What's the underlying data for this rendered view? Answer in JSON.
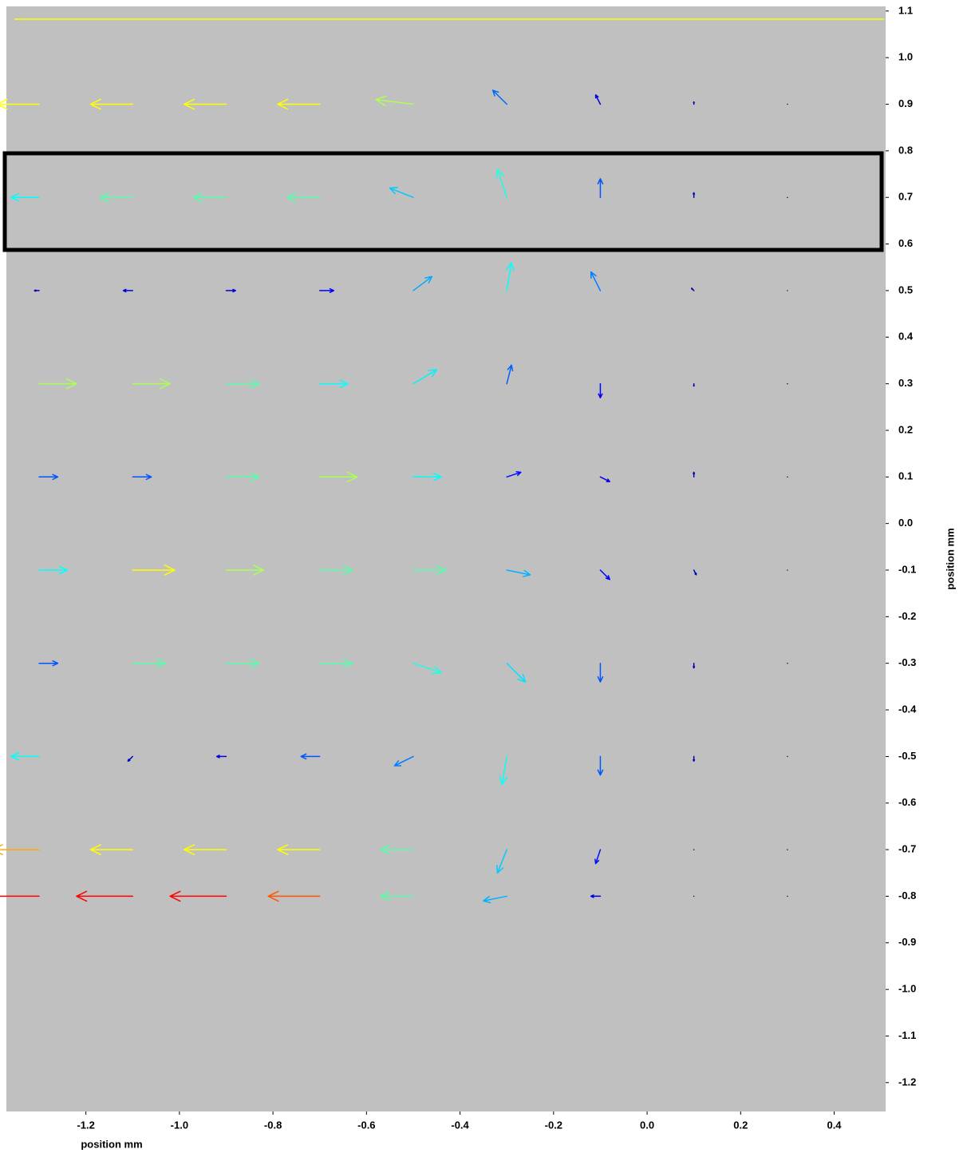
{
  "chart_data": {
    "type": "quiver",
    "xlabel": "position mm",
    "ylabel": "position mm",
    "xlim": [
      -1.37,
      0.51
    ],
    "ylim": [
      -1.262,
      1.11
    ],
    "xticks": [
      -1.2,
      {
        "value": -1,
        "label": "-1.0"
      },
      -0.8,
      -0.6,
      -0.4,
      -0.2,
      {
        "value": 0,
        "label": "0.0"
      },
      0.2,
      0.4
    ],
    "yticks": [
      1.1,
      {
        "value": 1,
        "label": "1.0"
      },
      0.9,
      0.8,
      0.7,
      0.6,
      0.5,
      0.4,
      0.3,
      0.2,
      0.1,
      {
        "value": 0,
        "label": "0.0"
      },
      -0.1,
      -0.2,
      -0.3,
      -0.4,
      -0.5,
      -0.6,
      -0.7,
      -0.8,
      -0.9,
      {
        "value": -1,
        "label": "-1.0"
      },
      -1.1,
      -1.2
    ],
    "background": "#c0c0c0",
    "colormap": [
      "#00008f",
      "#0000ff",
      "#00ffff",
      "#ffff00",
      "#ff0000"
    ],
    "clim": [
      0,
      0.12
    ],
    "x": [
      -1.3,
      -1.1,
      -0.9,
      -0.7,
      -0.5,
      -0.3,
      -0.1,
      0.1,
      0.3,
      -1.3,
      -1.1,
      -0.9,
      -0.7,
      -0.5,
      -0.3,
      -0.1,
      0.1,
      0.3,
      -1.3,
      -1.1,
      -0.9,
      -0.7,
      -0.5,
      -0.3,
      -0.1,
      0.1,
      0.3,
      -1.3,
      -1.1,
      -0.9,
      -0.7,
      -0.5,
      -0.3,
      -0.1,
      0.1,
      0.3,
      -1.3,
      -1.1,
      -0.9,
      -0.7,
      -0.5,
      -0.3,
      -0.1,
      0.1,
      0.3,
      -1.3,
      -1.1,
      -0.9,
      -0.7,
      -0.5,
      -0.3,
      -0.1,
      0.1,
      0.3,
      -1.3,
      -1.1,
      -0.9,
      -0.7,
      -0.5,
      -0.3,
      -0.1,
      0.1,
      0.3,
      -1.3,
      -1.1,
      -0.9,
      -0.7,
      -0.5,
      -0.3,
      -0.1,
      0.1,
      0.3,
      -1.3,
      -1.1,
      -0.9,
      -0.7,
      -0.5,
      -0.3,
      -0.1,
      0.1,
      0.3,
      -1.3,
      -1.1,
      -0.9,
      -0.7,
      -0.5,
      -0.3,
      -0.1,
      0.1,
      0.3
    ],
    "y": [
      0.9,
      0.9,
      0.9,
      0.9,
      0.9,
      0.9,
      0.9,
      0.9,
      0.9,
      0.7,
      0.7,
      0.7,
      0.7,
      0.7,
      0.7,
      0.7,
      0.7,
      0.7,
      0.5,
      0.5,
      0.5,
      0.5,
      0.5,
      0.5,
      0.5,
      0.5,
      0.5,
      0.3,
      0.3,
      0.3,
      0.3,
      0.3,
      0.3,
      0.3,
      0.3,
      0.3,
      0.1,
      0.1,
      0.1,
      0.1,
      0.1,
      0.1,
      0.1,
      0.1,
      0.1,
      -0.1,
      -0.1,
      -0.1,
      -0.1,
      -0.1,
      -0.1,
      -0.1,
      -0.1,
      -0.1,
      -0.3,
      -0.3,
      -0.3,
      -0.3,
      -0.3,
      -0.3,
      -0.3,
      -0.3,
      -0.3,
      -0.5,
      -0.5,
      -0.5,
      -0.5,
      -0.5,
      -0.5,
      -0.5,
      -0.5,
      -0.5,
      -0.7,
      -0.7,
      -0.7,
      -0.7,
      -0.7,
      -0.7,
      -0.7,
      -0.7,
      -0.7,
      -0.8,
      -0.8,
      -0.8,
      -0.8,
      -0.8,
      -0.8,
      -0.8,
      -0.8,
      -0.8
    ],
    "u": [
      -0.09,
      -0.09,
      -0.09,
      -0.09,
      -0.08,
      -0.03,
      -0.01,
      0,
      0,
      -0.06,
      -0.07,
      -0.07,
      -0.07,
      -0.05,
      -0.02,
      0,
      0,
      0,
      -0.01,
      -0.02,
      0.02,
      0.03,
      0.04,
      0.01,
      -0.02,
      -0.005,
      0,
      0.08,
      0.08,
      0.07,
      0.06,
      0.05,
      0.01,
      0,
      0,
      0,
      0.04,
      0.04,
      0.07,
      0.08,
      0.06,
      0.03,
      0.02,
      0,
      0,
      0.06,
      0.09,
      0.08,
      0.07,
      0.07,
      0.05,
      0.02,
      0.005,
      0,
      0.04,
      0.07,
      0.07,
      0.07,
      0.06,
      0.04,
      0,
      0,
      0,
      -0.06,
      -0.01,
      -0.02,
      -0.04,
      -0.04,
      -0.01,
      0,
      0,
      0,
      -0.1,
      -0.09,
      -0.09,
      -0.09,
      -0.07,
      -0.02,
      -0.01,
      0,
      0,
      -0.12,
      -0.12,
      -0.12,
      -0.11,
      -0.07,
      -0.05,
      -0.02,
      0,
      0
    ],
    "v": [
      0,
      0,
      0,
      0,
      0.01,
      0.03,
      0.02,
      0.005,
      0,
      0,
      0,
      0,
      0,
      0.02,
      0.06,
      0.04,
      0.01,
      0,
      0,
      0,
      0,
      0,
      0.03,
      0.06,
      0.04,
      0.005,
      0,
      0,
      0,
      0,
      0,
      0.03,
      0.04,
      -0.03,
      -0.005,
      0,
      0,
      0,
      0,
      0,
      0,
      0.01,
      -0.01,
      0.01,
      0,
      0,
      0,
      0,
      0,
      0,
      -0.01,
      -0.02,
      -0.01,
      0,
      0,
      0,
      0,
      0,
      -0.02,
      -0.04,
      -0.04,
      -0.01,
      0,
      0,
      -0.01,
      0,
      0,
      -0.02,
      -0.06,
      -0.04,
      -0.01,
      0,
      0,
      0,
      0,
      0,
      0,
      -0.05,
      -0.03,
      0,
      0,
      0,
      0,
      0,
      0,
      0,
      -0.01,
      0,
      0,
      0
    ]
  }
}
